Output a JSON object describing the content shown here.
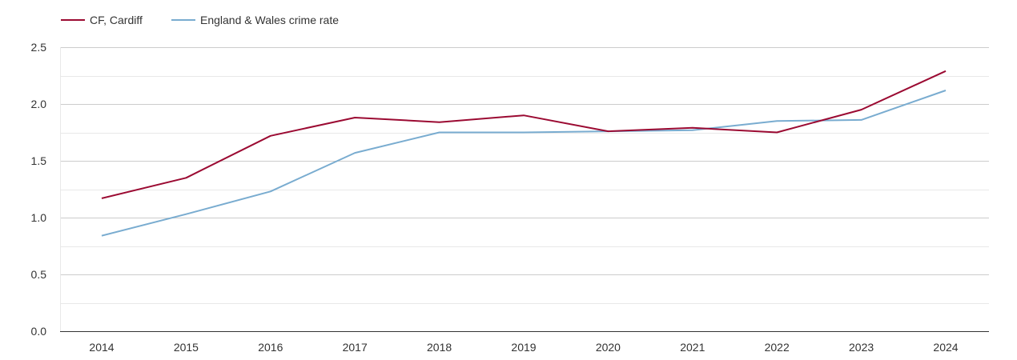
{
  "chart_data": {
    "type": "line",
    "title": "",
    "xlabel": "",
    "ylabel": "",
    "categories": [
      "2014",
      "2015",
      "2016",
      "2017",
      "2018",
      "2019",
      "2020",
      "2021",
      "2022",
      "2023",
      "2024"
    ],
    "ylim": [
      0,
      2.5
    ],
    "yticks": [
      "0.0",
      "0.5",
      "1.0",
      "1.5",
      "2.0",
      "2.5"
    ],
    "grid": true,
    "legend_position": "top-left",
    "series": [
      {
        "name": "CF, Cardiff",
        "color": "#9b0a32",
        "values": [
          1.17,
          1.35,
          1.72,
          1.88,
          1.84,
          1.9,
          1.76,
          1.79,
          1.75,
          1.95,
          2.29
        ]
      },
      {
        "name": "England & Wales crime rate",
        "color": "#79acd0",
        "values": [
          0.84,
          1.03,
          1.23,
          1.57,
          1.75,
          1.75,
          1.76,
          1.77,
          1.85,
          1.86,
          2.12
        ]
      }
    ]
  }
}
